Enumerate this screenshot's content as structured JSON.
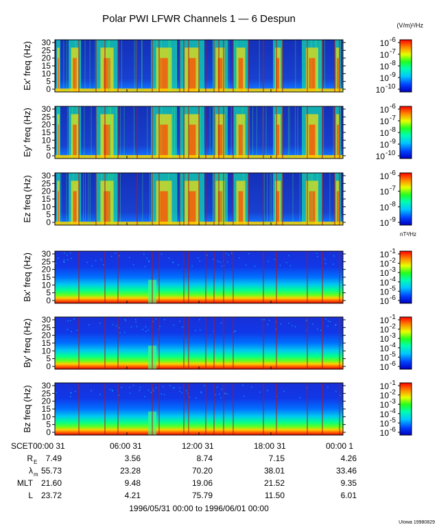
{
  "title": "Polar PWI LFWR Channels 1 — 6 Despun",
  "units": {
    "electric": "(V/m)²/Hz",
    "magnetic": "nT²/Hz"
  },
  "credit": "UIowa 19980829",
  "date_range": "1996/05/31 00:00 to 1996/06/01 00:00",
  "colors": {
    "background": "#ffffff",
    "frame": "#000000",
    "event_line": "#b01818",
    "colorbar": [
      "#000080",
      "#0000ff",
      "#00a0ff",
      "#00ffc0",
      "#00ff00",
      "#ffff00",
      "#ff8000",
      "#ff0000"
    ]
  },
  "chart_data": {
    "type": "heatmap",
    "title": "Polar PWI LFWR Channels 1 — 6 Despun",
    "x_tick_labels": [
      "SCET00:00 31",
      "06:00 31",
      "12:00 31",
      "18:00 31",
      "00:00  1"
    ],
    "y_ticks": [
      "0",
      "5",
      "10",
      "15",
      "20",
      "25",
      "30"
    ],
    "ylim": [
      0,
      30
    ],
    "panels": [
      {
        "ylabel": "Ex' freq (Hz)",
        "type": "electric",
        "cbar": [
          {
            "base": "10",
            "exp": "-6"
          },
          {
            "base": "10",
            "exp": "-7"
          },
          {
            "base": "10",
            "exp": "-8"
          },
          {
            "base": "10",
            "exp": "-9"
          },
          {
            "base": "10",
            "exp": "-10"
          }
        ]
      },
      {
        "ylabel": "Ey' freq (Hz)",
        "type": "electric",
        "cbar": [
          {
            "base": "10",
            "exp": "-6"
          },
          {
            "base": "10",
            "exp": "-7"
          },
          {
            "base": "10",
            "exp": "-8"
          },
          {
            "base": "10",
            "exp": "-9"
          },
          {
            "base": "10",
            "exp": "-10"
          }
        ]
      },
      {
        "ylabel": "Ez freq (Hz)",
        "type": "electric",
        "cbar": [
          {
            "base": "10",
            "exp": "-6"
          },
          {
            "base": "10",
            "exp": "-7"
          },
          {
            "base": "10",
            "exp": "-8"
          },
          {
            "base": "10",
            "exp": "-9"
          }
        ]
      },
      {
        "ylabel": "Bx' freq (Hz)",
        "type": "magnetic",
        "cbar": [
          {
            "base": "10",
            "exp": "-1"
          },
          {
            "base": "10",
            "exp": "-2"
          },
          {
            "base": "10",
            "exp": "-3"
          },
          {
            "base": "10",
            "exp": "-4"
          },
          {
            "base": "10",
            "exp": "-5"
          },
          {
            "base": "10",
            "exp": "-6"
          }
        ]
      },
      {
        "ylabel": "By' freq (Hz)",
        "type": "magnetic",
        "cbar": [
          {
            "base": "10",
            "exp": "-1"
          },
          {
            "base": "10",
            "exp": "-2"
          },
          {
            "base": "10",
            "exp": "-3"
          },
          {
            "base": "10",
            "exp": "-4"
          },
          {
            "base": "10",
            "exp": "-5"
          },
          {
            "base": "10",
            "exp": "-6"
          }
        ]
      },
      {
        "ylabel": "Bz freq (Hz)",
        "type": "magnetic",
        "cbar": [
          {
            "base": "10",
            "exp": "-1"
          },
          {
            "base": "10",
            "exp": "-2"
          },
          {
            "base": "10",
            "exp": "-3"
          },
          {
            "base": "10",
            "exp": "-4"
          },
          {
            "base": "10",
            "exp": "-5"
          },
          {
            "base": "10",
            "exp": "-6"
          }
        ]
      }
    ],
    "ephemeris": [
      {
        "label": "R",
        "sub": "E",
        "values": [
          "7.49",
          "3.56",
          "8.74",
          "7.15",
          "4.26"
        ]
      },
      {
        "label": "λ",
        "sub": "m",
        "values": [
          "55.73",
          "23.28",
          "70.20",
          "38.01",
          "33.46"
        ]
      },
      {
        "label": "MLT",
        "sub": "",
        "values": [
          "21.60",
          "9.48",
          "19.06",
          "21.52",
          "9.35"
        ]
      },
      {
        "label": "L",
        "sub": "",
        "values": [
          "23.72",
          "4.21",
          "75.79",
          "11.50",
          "6.01"
        ]
      }
    ]
  }
}
